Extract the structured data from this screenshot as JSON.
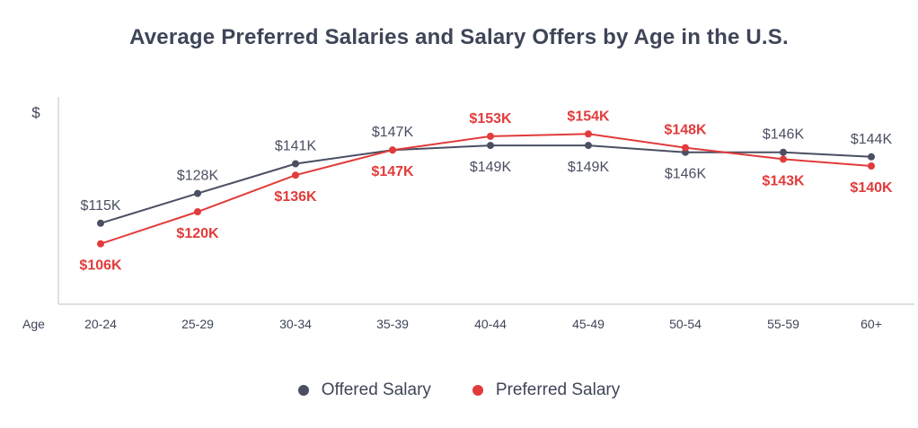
{
  "chart_data": {
    "type": "line",
    "title": "Average Preferred Salaries and Salary Offers by Age in the U.S.",
    "ylabel": "$",
    "xlabel": "Age",
    "categories": [
      "20-24",
      "25-29",
      "30-34",
      "35-39",
      "40-44",
      "45-49",
      "50-54",
      "55-59",
      "60+"
    ],
    "ylim": [
      80,
      170
    ],
    "grid": false,
    "legend_position": "bottom-center",
    "series": [
      {
        "name": "Offered Salary",
        "color": "#4a4f62",
        "values": [
          115,
          128,
          141,
          147,
          149,
          149,
          146,
          146,
          144
        ],
        "labels": [
          "$115K",
          "$128K",
          "$141K",
          "$147K",
          "$149K",
          "$149K",
          "$146K",
          "$146K",
          "$144K"
        ]
      },
      {
        "name": "Preferred Salary",
        "color": "#e23b3b",
        "values": [
          106,
          120,
          136,
          147,
          153,
          154,
          148,
          143,
          140
        ],
        "labels": [
          "$106K",
          "$120K",
          "$136K",
          "$147K",
          "$153K",
          "$154K",
          "$148K",
          "$143K",
          "$140K"
        ]
      }
    ]
  }
}
